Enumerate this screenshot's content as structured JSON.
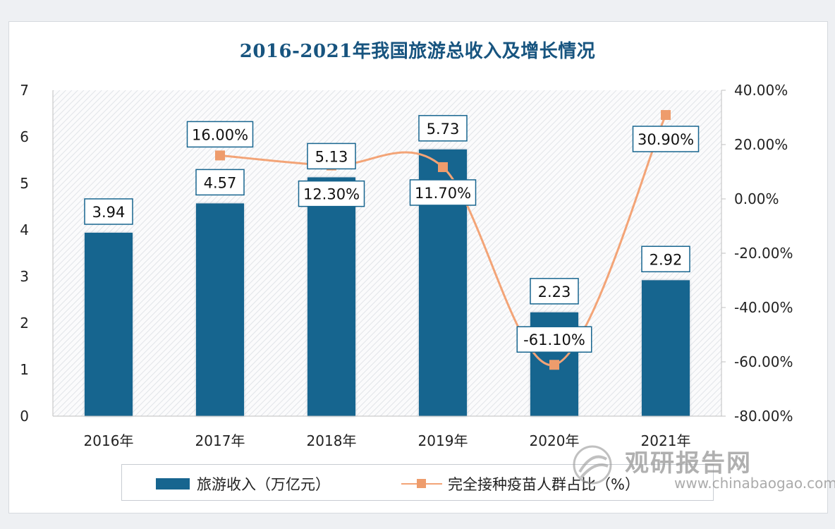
{
  "chart_data": {
    "type": "bar",
    "title": "2016-2021年我国旅游总收入及增长情况",
    "categories": [
      "2016年",
      "2017年",
      "2018年",
      "2019年",
      "2020年",
      "2021年"
    ],
    "series": [
      {
        "name": "旅游收入（万亿元）",
        "type": "bar",
        "axis": "left",
        "values": [
          3.94,
          4.57,
          5.13,
          5.73,
          2.23,
          2.92
        ],
        "labels": [
          "3.94",
          "4.57",
          "5.13",
          "5.73",
          "2.23",
          "2.92"
        ],
        "color": "#17658f"
      },
      {
        "name": "完全接种疫苗人群占比（%）",
        "type": "line",
        "axis": "right",
        "values": [
          null,
          16.0,
          12.3,
          11.7,
          -61.1,
          30.9
        ],
        "labels": [
          "",
          "16.00%",
          "12.30%",
          "11.70%",
          "-61.10%",
          "30.90%"
        ],
        "color": "#f3a477"
      }
    ],
    "y_left": {
      "ylim": [
        0,
        7
      ],
      "ticks": [
        "0",
        "1",
        "2",
        "3",
        "4",
        "5",
        "6",
        "7"
      ]
    },
    "y_right": {
      "ylim": [
        -80,
        40
      ],
      "ticks": [
        "40.00%",
        "20.00%",
        "0.00%",
        "-20.00%",
        "-40.00%",
        "-60.00%",
        "-80.00%"
      ]
    },
    "legend_position": "bottom",
    "grid": false
  },
  "legend": {
    "bar_label": "旅游收入（万亿元）",
    "line_label": "完全接种疫苗人群占比（%）"
  },
  "watermark": {
    "name": "观研报告网",
    "url": "www.chinabaogao.com"
  },
  "colors": {
    "bar": "#17658f",
    "line": "#f3a477",
    "marker": "#ee9c6c",
    "title": "#17547f"
  }
}
